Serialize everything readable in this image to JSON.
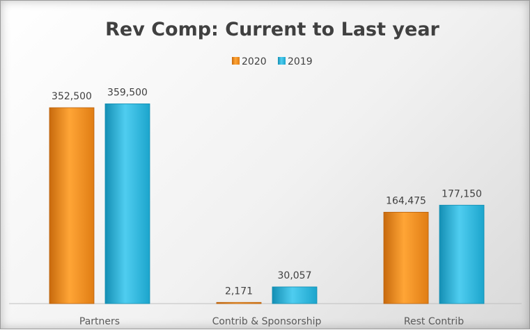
{
  "chart_data": {
    "type": "bar",
    "title": "Rev Comp: Current to Last year",
    "categories": [
      "Partners",
      "Contrib & Sponsorship",
      "Rest Contrib"
    ],
    "series": [
      {
        "name": "2020",
        "values": [
          352500,
          2171,
          164475
        ],
        "labels": [
          "352,500",
          "2,171",
          "164,475"
        ],
        "color": "#f7941d"
      },
      {
        "name": "2019",
        "values": [
          359500,
          30057,
          177150
        ],
        "labels": [
          "359,500",
          "30,057",
          "177,150"
        ],
        "color": "#2ab4d9"
      }
    ],
    "xlabel": "",
    "ylabel": "",
    "ylim": [
      0,
      360000
    ],
    "grid": false,
    "legend_position": "top-center"
  }
}
